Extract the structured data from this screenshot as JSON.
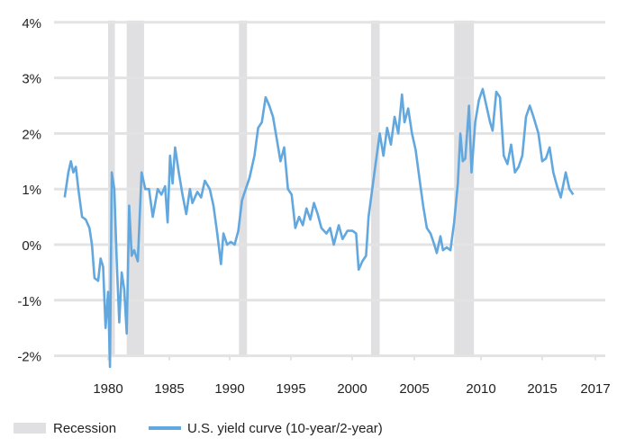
{
  "chart_data": {
    "type": "line",
    "title": "",
    "xlabel": "",
    "ylabel": "",
    "ylim": [
      -2,
      4
    ],
    "xlim": [
      1976,
      2018
    ],
    "y_ticks": [
      "4%",
      "3%",
      "2%",
      "1%",
      "0%",
      "-1%",
      "-2%"
    ],
    "y_tick_values": [
      4,
      3,
      2,
      1,
      0,
      -1,
      -2
    ],
    "x_ticks": [
      "1980",
      "1985",
      "1990",
      "1995",
      "2000",
      "2005",
      "2010",
      "2015",
      "2017"
    ],
    "grid": true,
    "legend_position": "bottom-left",
    "colors": {
      "series": "#62a8de",
      "recession": "#e0e0e2",
      "grid": "#e3e3e3"
    },
    "recessions": [
      [
        1980.0,
        1980.55
      ],
      [
        1981.5,
        1982.9
      ],
      [
        1990.55,
        1991.2
      ],
      [
        2001.2,
        2001.9
      ],
      [
        2007.9,
        2009.5
      ]
    ],
    "legend": {
      "recession": "Recession",
      "series": "U.S. yield curve (10-year/2-year)"
    },
    "series": [
      {
        "name": "U.S. yield curve (10-year/2-year)",
        "x": [
          1976.5,
          1976.8,
          1977.0,
          1977.2,
          1977.4,
          1977.6,
          1977.9,
          1978.2,
          1978.5,
          1978.7,
          1978.9,
          1979.2,
          1979.4,
          1979.6,
          1979.8,
          1980.0,
          1980.15,
          1980.3,
          1980.5,
          1980.7,
          1980.9,
          1981.1,
          1981.3,
          1981.5,
          1981.7,
          1981.9,
          1982.1,
          1982.4,
          1982.7,
          1983.0,
          1983.3,
          1983.6,
          1984.0,
          1984.3,
          1984.6,
          1984.8,
          1985.0,
          1985.2,
          1985.4,
          1985.7,
          1986.0,
          1986.3,
          1986.6,
          1986.8,
          1987.2,
          1987.5,
          1987.8,
          1988.2,
          1988.5,
          1988.8,
          1989.1,
          1989.3,
          1989.6,
          1989.9,
          1990.2,
          1990.5,
          1990.8,
          1991.1,
          1991.4,
          1991.8,
          1992.1,
          1992.4,
          1992.7,
          1993.0,
          1993.3,
          1993.6,
          1993.9,
          1994.2,
          1994.5,
          1994.8,
          1995.1,
          1995.4,
          1995.7,
          1996.0,
          1996.3,
          1996.6,
          1996.9,
          1997.2,
          1997.6,
          1997.9,
          1998.2,
          1998.6,
          1998.9,
          1999.3,
          1999.7,
          2000.0,
          2000.2,
          2000.5,
          2000.8,
          2001.0,
          2001.3,
          2001.6,
          2001.9,
          2002.2,
          2002.5,
          2002.8,
          2003.1,
          2003.4,
          2003.7,
          2003.9,
          2004.2,
          2004.5,
          2004.8,
          2005.1,
          2005.4,
          2005.7,
          2006.0,
          2006.3,
          2006.5,
          2006.8,
          2007.0,
          2007.3,
          2007.6,
          2007.9,
          2008.2,
          2008.4,
          2008.6,
          2008.8,
          2009.1,
          2009.3,
          2009.6,
          2009.9,
          2010.2,
          2010.5,
          2010.8,
          2011.0,
          2011.3,
          2011.6,
          2011.9,
          2012.2,
          2012.5,
          2012.8,
          2013.1,
          2013.4,
          2013.7,
          2014.0,
          2014.3,
          2014.7,
          2015.0,
          2015.3,
          2015.6,
          2015.9,
          2016.2,
          2016.5,
          2016.9,
          2017.2,
          2017.5
        ],
        "y": [
          0.85,
          1.3,
          1.5,
          1.3,
          1.4,
          1.0,
          0.5,
          0.45,
          0.3,
          0.0,
          -0.6,
          -0.65,
          -0.25,
          -0.4,
          -1.5,
          -0.85,
          -2.2,
          1.3,
          1.0,
          -0.3,
          -1.4,
          -0.5,
          -0.8,
          -1.6,
          0.7,
          -0.2,
          -0.1,
          -0.3,
          1.3,
          1.0,
          1.0,
          0.5,
          1.0,
          0.9,
          1.05,
          0.4,
          1.6,
          1.1,
          1.75,
          1.3,
          0.9,
          0.55,
          1.0,
          0.75,
          0.95,
          0.85,
          1.15,
          1.0,
          0.7,
          0.2,
          -0.35,
          0.2,
          0.0,
          0.05,
          0.0,
          0.25,
          0.8,
          1.0,
          1.2,
          1.6,
          2.1,
          2.2,
          2.65,
          2.5,
          2.3,
          1.9,
          1.5,
          1.75,
          1.0,
          0.9,
          0.3,
          0.5,
          0.35,
          0.65,
          0.45,
          0.75,
          0.55,
          0.3,
          0.2,
          0.3,
          0.0,
          0.35,
          0.1,
          0.25,
          0.25,
          0.2,
          -0.45,
          -0.3,
          -0.2,
          0.5,
          1.0,
          1.5,
          2.0,
          1.6,
          2.1,
          1.8,
          2.3,
          2.0,
          2.7,
          2.2,
          2.45,
          2.0,
          1.7,
          1.2,
          0.7,
          0.3,
          0.2,
          0.0,
          -0.15,
          0.15,
          -0.1,
          -0.05,
          -0.1,
          0.4,
          1.1,
          2.0,
          1.5,
          1.55,
          2.5,
          1.3,
          2.2,
          2.6,
          2.8,
          2.5,
          2.2,
          2.05,
          2.75,
          2.65,
          1.6,
          1.45,
          1.8,
          1.3,
          1.4,
          1.6,
          2.3,
          2.5,
          2.3,
          2.0,
          1.5,
          1.55,
          1.75,
          1.3,
          1.05,
          0.85,
          1.3,
          1.0,
          0.9
        ]
      }
    ]
  }
}
